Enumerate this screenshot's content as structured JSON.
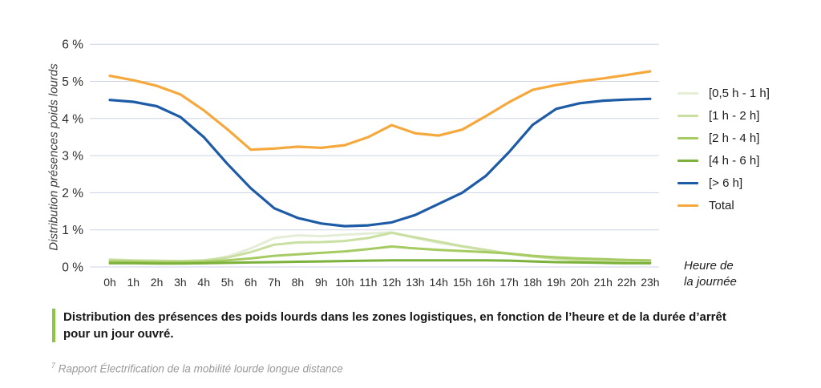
{
  "style": {
    "grid_color": "#cdd3e4",
    "tick_color": "#2d2d2d",
    "caption_bar_color": "#8dc63f"
  },
  "chart_data": {
    "type": "line",
    "title": "",
    "ylabel": "Distribution présences poids lourds",
    "xlabel": "Heure de la journée",
    "ylim": [
      0,
      6
    ],
    "grid": true,
    "legend_position": "right",
    "y_tick_labels": [
      "0 %",
      "1 %",
      "2 %",
      "3 %",
      "4 %",
      "5 %",
      "6 %"
    ],
    "x": [
      "0h",
      "1h",
      "2h",
      "3h",
      "4h",
      "5h",
      "6h",
      "7h",
      "8h",
      "9h",
      "10h",
      "11h",
      "12h",
      "13h",
      "14h",
      "15h",
      "16h",
      "17h",
      "18h",
      "19h",
      "20h",
      "21h",
      "22h",
      "23h"
    ],
    "series": [
      {
        "name": "[0,5 h - 1 h]",
        "color": "#e4eed6",
        "width": 3,
        "values": [
          0.15,
          0.14,
          0.13,
          0.13,
          0.16,
          0.28,
          0.5,
          0.78,
          0.85,
          0.83,
          0.87,
          0.9,
          0.93,
          0.78,
          0.65,
          0.55,
          0.44,
          0.35,
          0.28,
          0.23,
          0.2,
          0.18,
          0.17,
          0.16
        ]
      },
      {
        "name": "[1 h - 2 h]",
        "color": "#cadfa2",
        "width": 3,
        "values": [
          0.2,
          0.18,
          0.17,
          0.16,
          0.18,
          0.25,
          0.4,
          0.6,
          0.66,
          0.67,
          0.7,
          0.78,
          0.92,
          0.8,
          0.68,
          0.56,
          0.46,
          0.36,
          0.28,
          0.22,
          0.18,
          0.16,
          0.14,
          0.13
        ]
      },
      {
        "name": "[2 h - 4 h]",
        "color": "#a6cb63",
        "width": 3,
        "values": [
          0.15,
          0.14,
          0.13,
          0.13,
          0.14,
          0.18,
          0.23,
          0.3,
          0.34,
          0.38,
          0.42,
          0.48,
          0.55,
          0.5,
          0.46,
          0.43,
          0.4,
          0.36,
          0.3,
          0.26,
          0.23,
          0.21,
          0.19,
          0.18
        ]
      },
      {
        "name": "[4 h - 6 h]",
        "color": "#7cb13c",
        "width": 3,
        "values": [
          0.1,
          0.1,
          0.09,
          0.09,
          0.1,
          0.11,
          0.12,
          0.13,
          0.14,
          0.15,
          0.16,
          0.17,
          0.18,
          0.18,
          0.18,
          0.18,
          0.18,
          0.17,
          0.15,
          0.13,
          0.12,
          0.11,
          0.1,
          0.1
        ]
      },
      {
        "name": "[> 6 h]",
        "color": "#1e5ba6",
        "width": 3.2,
        "values": [
          4.5,
          4.45,
          4.33,
          4.04,
          3.5,
          2.78,
          2.12,
          1.58,
          1.32,
          1.17,
          1.1,
          1.12,
          1.2,
          1.4,
          1.7,
          2.0,
          2.45,
          3.1,
          3.83,
          4.26,
          4.41,
          4.48,
          4.51,
          4.53
        ]
      },
      {
        "name": "Total",
        "color": "#f5a83c",
        "width": 3.2,
        "values": [
          5.15,
          5.03,
          4.88,
          4.65,
          4.22,
          3.71,
          3.16,
          3.19,
          3.24,
          3.21,
          3.28,
          3.5,
          3.82,
          3.6,
          3.54,
          3.7,
          4.06,
          4.44,
          4.77,
          4.9,
          5.0,
          5.08,
          5.17,
          5.27
        ]
      }
    ]
  },
  "labels": {
    "y_axis_title": "Distribution présences poids lourds",
    "x_axis_line1": "Heure de",
    "x_axis_line2": "la journée"
  },
  "caption": {
    "line1": "Distribution des présences des poids lourds dans les zones logistiques, en fonction de l’heure et de la durée d’arrêt",
    "line2": "pour un jour ouvré."
  },
  "footnote": {
    "marker": "7",
    "text": "Rapport Électrification de la mobilité lourde longue distance"
  }
}
